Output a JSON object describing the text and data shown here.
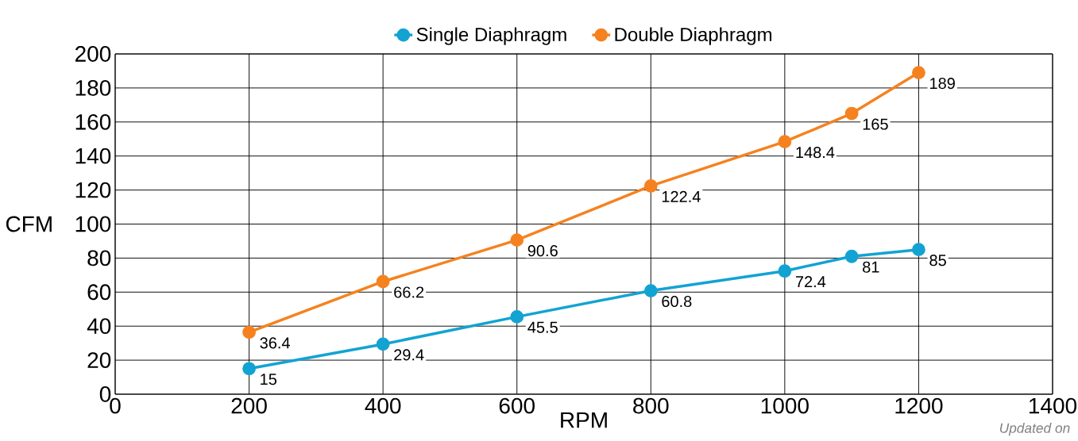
{
  "chart_data": {
    "type": "line",
    "xlabel": "RPM",
    "ylabel": "CFM",
    "x": [
      200,
      400,
      600,
      800,
      1000,
      1100,
      1200
    ],
    "series": [
      {
        "name": "Single Diaphragm",
        "color": "#12a3d3",
        "values": [
          15,
          29.4,
          45.5,
          60.8,
          72.4,
          81,
          85
        ]
      },
      {
        "name": "Double Diaphragm",
        "color": "#f5821f",
        "values": [
          36.4,
          66.2,
          90.6,
          122.4,
          148.4,
          165,
          189
        ]
      }
    ],
    "xlim": [
      0,
      1400
    ],
    "xticks": [
      0,
      200,
      400,
      600,
      800,
      1000,
      1200,
      1400
    ],
    "ylim": [
      0,
      200
    ],
    "yticks": [
      0,
      20,
      40,
      60,
      80,
      100,
      120,
      140,
      160,
      180,
      200
    ],
    "grid": true,
    "legend": "top",
    "marker": "circle",
    "line_style": "solid",
    "data_labels": true,
    "annotations": [
      "Updated on"
    ]
  }
}
